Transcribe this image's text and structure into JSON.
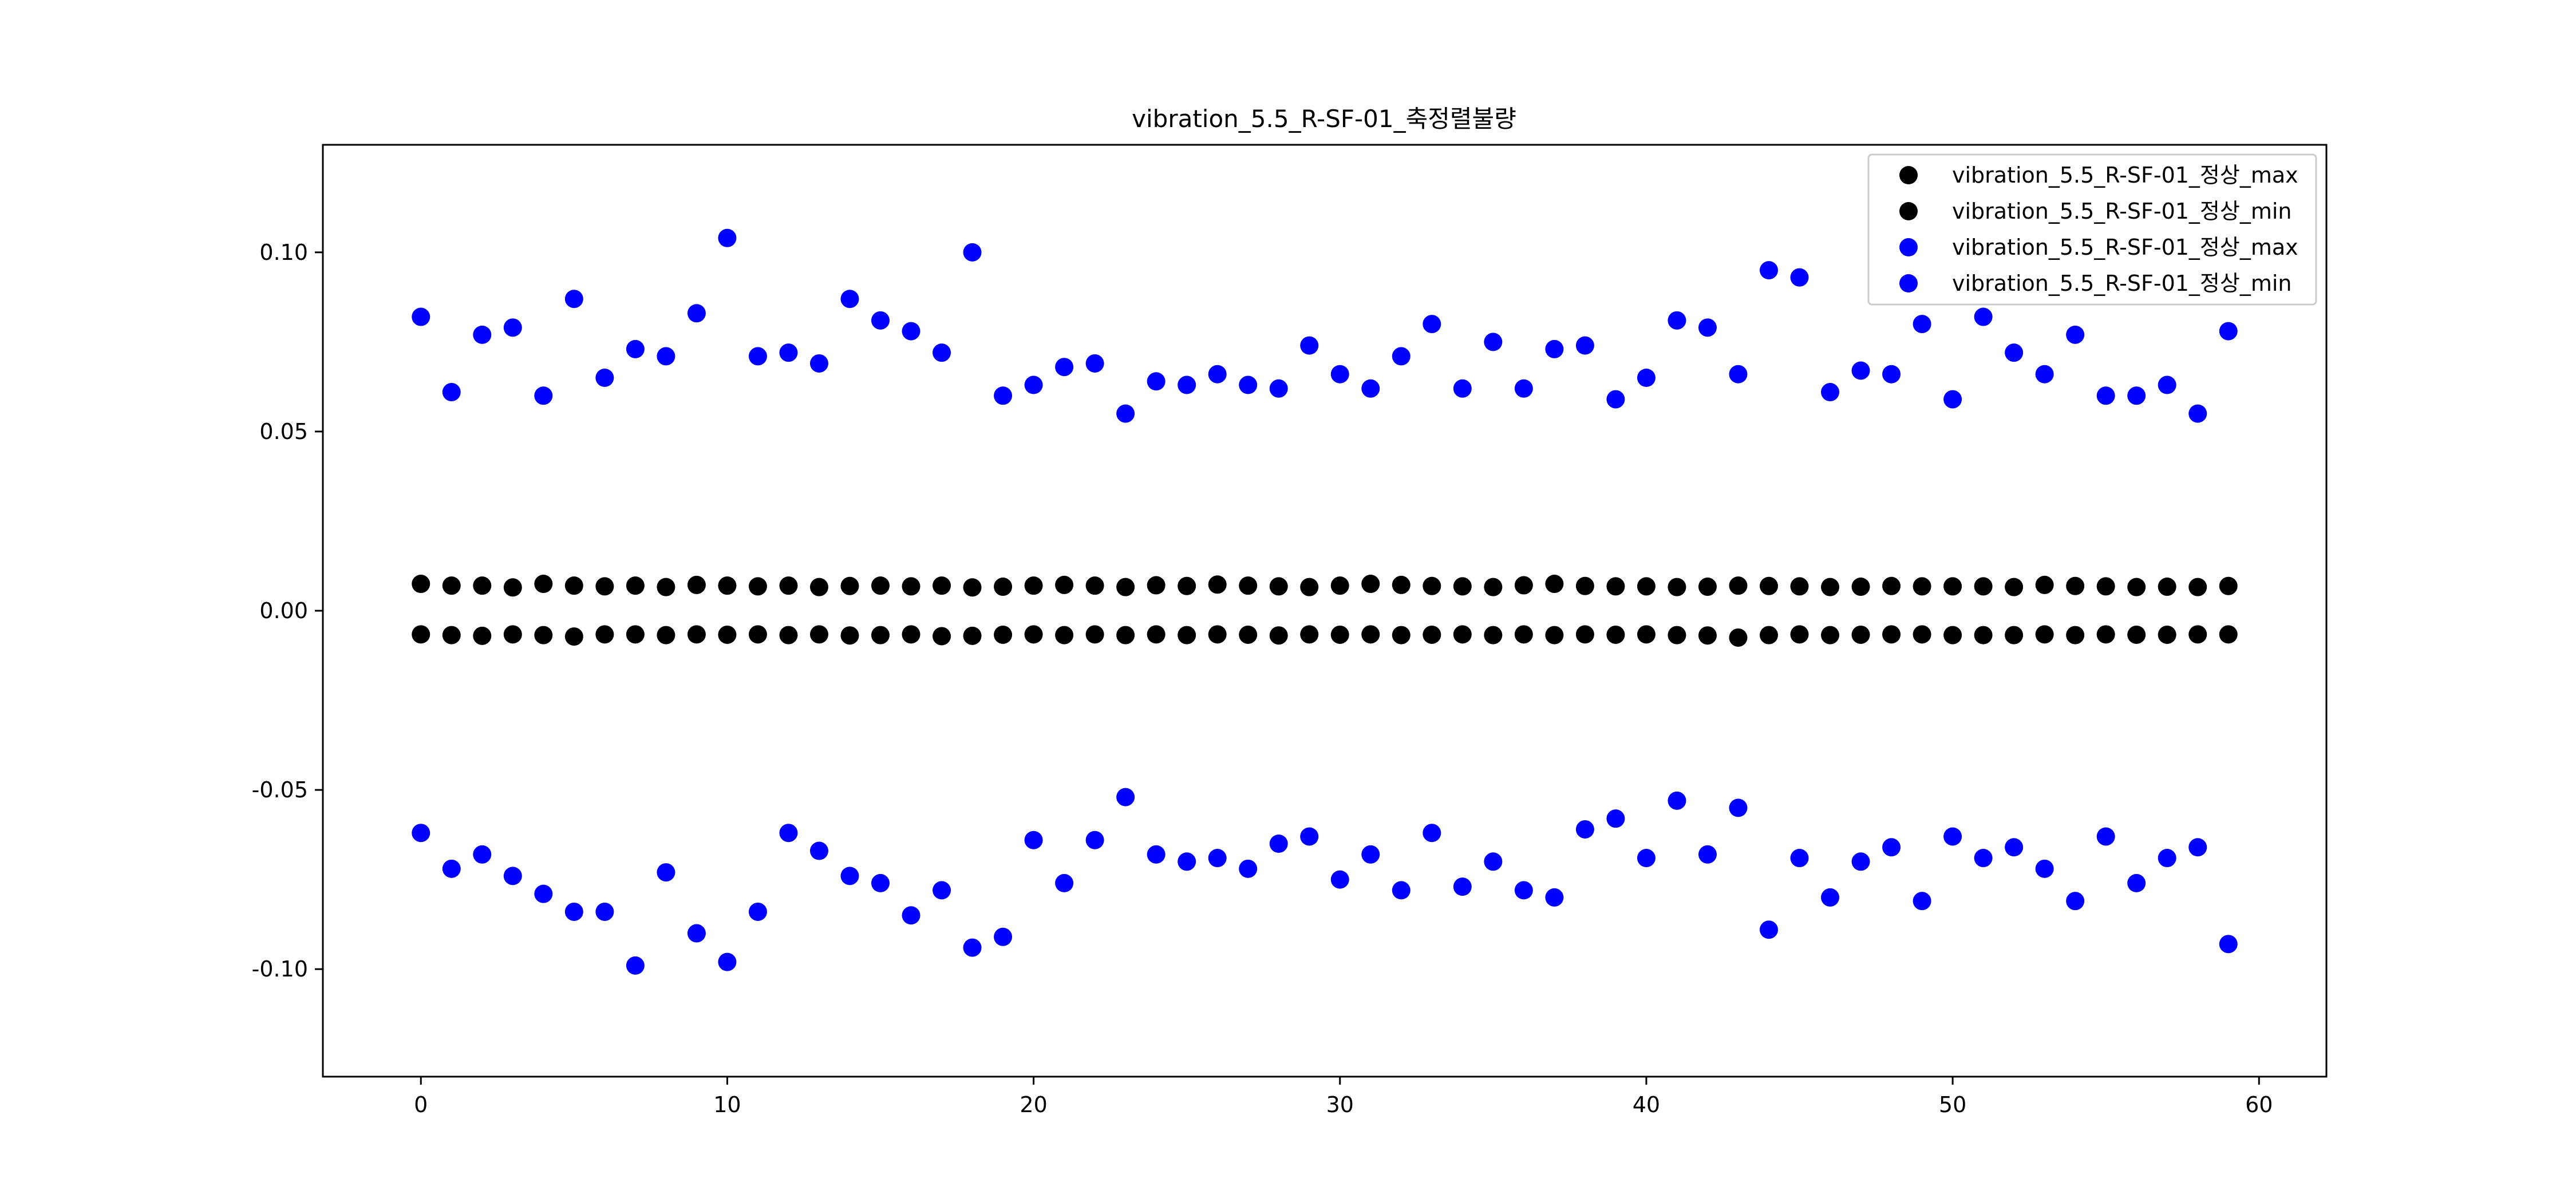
{
  "chart_data": {
    "type": "scatter",
    "title": "vibration_5.5_R-SF-01_축정렬불량",
    "xlabel": "",
    "ylabel": "",
    "xlim": [
      -3.2,
      62.2
    ],
    "ylim": [
      -0.13,
      0.13
    ],
    "x_ticks": [
      0,
      10,
      20,
      30,
      40,
      50,
      60
    ],
    "x_tick_labels": [
      "0",
      "10",
      "20",
      "30",
      "40",
      "50",
      "60"
    ],
    "y_ticks": [
      -0.1,
      -0.05,
      0.0,
      0.05,
      0.1
    ],
    "y_tick_labels": [
      "-0.10",
      "-0.05",
      "0.00",
      "0.05",
      "0.10"
    ],
    "grid": false,
    "legend_position": "top-right",
    "x": [
      0,
      1,
      2,
      3,
      4,
      5,
      6,
      7,
      8,
      9,
      10,
      11,
      12,
      13,
      14,
      15,
      16,
      17,
      18,
      19,
      20,
      21,
      22,
      23,
      24,
      25,
      26,
      27,
      28,
      29,
      30,
      31,
      32,
      33,
      34,
      35,
      36,
      37,
      38,
      39,
      40,
      41,
      42,
      43,
      44,
      45,
      46,
      47,
      48,
      49,
      50,
      51,
      52,
      53,
      54,
      55,
      56,
      57,
      58,
      59
    ],
    "series": [
      {
        "name": "vibration_5.5_R-SF-01_정상_max",
        "color": "#000000",
        "values": [
          0.0075,
          0.007,
          0.007,
          0.0065,
          0.0075,
          0.007,
          0.0068,
          0.007,
          0.0066,
          0.0072,
          0.007,
          0.0068,
          0.007,
          0.0066,
          0.0069,
          0.007,
          0.0068,
          0.007,
          0.0065,
          0.0067,
          0.007,
          0.0072,
          0.007,
          0.0066,
          0.0071,
          0.0069,
          0.0073,
          0.007,
          0.0068,
          0.0066,
          0.007,
          0.0075,
          0.0072,
          0.0069,
          0.0068,
          0.0066,
          0.0071,
          0.0075,
          0.0069,
          0.0068,
          0.0068,
          0.0066,
          0.0067,
          0.007,
          0.0069,
          0.0068,
          0.0066,
          0.0067,
          0.0069,
          0.0068,
          0.0068,
          0.0068,
          0.0066,
          0.0072,
          0.0069,
          0.0068,
          0.0066,
          0.0067,
          0.0066,
          0.0069
        ]
      },
      {
        "name": "vibration_5.5_R-SF-01_정상_min",
        "color": "#000000",
        "values": [
          -0.0066,
          -0.0068,
          -0.007,
          -0.0066,
          -0.0068,
          -0.0072,
          -0.0066,
          -0.0066,
          -0.0068,
          -0.0066,
          -0.0067,
          -0.0066,
          -0.0068,
          -0.0066,
          -0.0069,
          -0.0068,
          -0.0066,
          -0.0071,
          -0.007,
          -0.0067,
          -0.0066,
          -0.0068,
          -0.0066,
          -0.0068,
          -0.0066,
          -0.0068,
          -0.0066,
          -0.0067,
          -0.0069,
          -0.0066,
          -0.0067,
          -0.0066,
          -0.0068,
          -0.0067,
          -0.0066,
          -0.0068,
          -0.0066,
          -0.0068,
          -0.0066,
          -0.0067,
          -0.0066,
          -0.0068,
          -0.0069,
          -0.0075,
          -0.0068,
          -0.0066,
          -0.0068,
          -0.0067,
          -0.0066,
          -0.0066,
          -0.0068,
          -0.0068,
          -0.0068,
          -0.0066,
          -0.0068,
          -0.0066,
          -0.0067,
          -0.0067,
          -0.0066,
          -0.0066
        ]
      },
      {
        "name": "vibration_5.5_R-SF-01_정상_max",
        "color": "#0000ff",
        "values": [
          0.082,
          0.061,
          0.077,
          0.079,
          0.06,
          0.087,
          0.065,
          0.073,
          0.071,
          0.083,
          0.104,
          0.071,
          0.072,
          0.069,
          0.087,
          0.081,
          0.078,
          0.072,
          0.1,
          0.06,
          0.063,
          0.068,
          0.069,
          0.055,
          0.064,
          0.063,
          0.066,
          0.063,
          0.062,
          0.074,
          0.066,
          0.062,
          0.071,
          0.08,
          0.062,
          0.075,
          0.062,
          0.073,
          0.074,
          0.059,
          0.065,
          0.081,
          0.079,
          0.066,
          0.095,
          0.093,
          0.061,
          0.067,
          0.066,
          0.08,
          0.059,
          0.082,
          0.072,
          0.066,
          0.077,
          0.06,
          0.06,
          0.063,
          0.055,
          0.078
        ]
      },
      {
        "name": "vibration_5.5_R-SF-01_정상_min",
        "color": "#0000ff",
        "values": [
          -0.062,
          -0.072,
          -0.068,
          -0.074,
          -0.079,
          -0.084,
          -0.084,
          -0.099,
          -0.073,
          -0.09,
          -0.098,
          -0.084,
          -0.062,
          -0.067,
          -0.074,
          -0.076,
          -0.085,
          -0.078,
          -0.094,
          -0.091,
          -0.064,
          -0.076,
          -0.064,
          -0.052,
          -0.068,
          -0.07,
          -0.069,
          -0.072,
          -0.065,
          -0.063,
          -0.075,
          -0.068,
          -0.078,
          -0.062,
          -0.077,
          -0.07,
          -0.078,
          -0.08,
          -0.061,
          -0.058,
          -0.069,
          -0.053,
          -0.068,
          -0.055,
          -0.089,
          -0.069,
          -0.08,
          -0.07,
          -0.066,
          -0.081,
          -0.063,
          -0.069,
          -0.066,
          -0.072,
          -0.081,
          -0.063,
          -0.076,
          -0.069,
          -0.066,
          -0.093
        ]
      }
    ]
  }
}
